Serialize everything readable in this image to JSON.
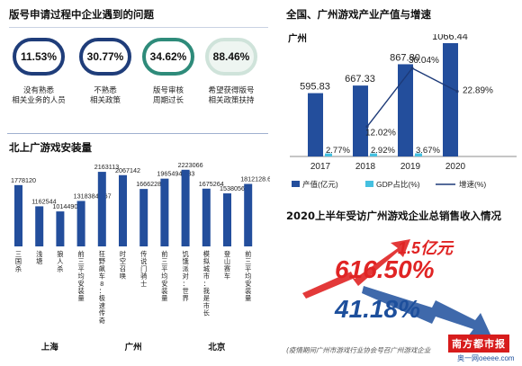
{
  "left_top": {
    "title": "版号申请过程中企业遇到的问题",
    "items": [
      {
        "value": "11.53%",
        "caption": "没有熟悉\n相关业务的人员",
        "color": "#1f3d7a"
      },
      {
        "value": "30.77%",
        "caption": "不熟悉\n相关政策",
        "color": "#1f3d7a"
      },
      {
        "value": "34.62%",
        "caption": "版号审核\n周期过长",
        "color": "#2e8b7a"
      },
      {
        "value": "88.46%",
        "caption": "希望获得版号\n相关政策扶持",
        "color": "#cfe3da"
      }
    ]
  },
  "chart_data": [
    {
      "type": "bar",
      "title": "北上广游戏安装量",
      "categories": [
        "三国杀",
        "浅塘",
        "狼人杀",
        "前三平均安装量",
        "狂野飙车8：极速传奇",
        "时空召唤",
        "传说门骑士",
        "前三平均安装量",
        "饥饿派对：世界",
        "模拟城市：我是市长",
        "登山赛车",
        "前三平均安装量"
      ],
      "values": [
        1778120,
        1162544,
        1014490,
        1318384.667,
        2163113,
        2067142,
        1666228,
        1965494.333,
        2223066,
        1675264,
        1538056,
        1812128.667
      ],
      "groups": [
        {
          "label": "上海",
          "count": 4
        },
        {
          "label": "广州",
          "count": 4
        },
        {
          "label": "北京",
          "count": 4
        }
      ],
      "bar_color": "#234e9c",
      "ylim": [
        0,
        2400000
      ]
    },
    {
      "type": "bar",
      "title": "全国、广州游戏产业产值与增速",
      "subtitle": "广州",
      "categories": [
        "2017",
        "2018",
        "2019",
        "2020"
      ],
      "series": [
        {
          "name": "产值(亿元)",
          "values": [
            595.83,
            667.33,
            867.8,
            1066.44
          ],
          "color": "#234e9c"
        },
        {
          "name": "GDP占比(%)",
          "values": [
            2.77,
            2.92,
            3.67,
            null
          ],
          "color": "#45c0e0"
        },
        {
          "name": "增速(%)",
          "values": [
            null,
            12.02,
            30.04,
            22.89
          ],
          "color": "#1d3a78"
        }
      ],
      "labels": {
        "output": [
          "595.83",
          "667.33",
          "867.80",
          "1066.44"
        ],
        "gdp": [
          "2.77%",
          "2.92%",
          "3.67%",
          ""
        ],
        "growth": [
          "",
          "12.02%",
          "30.04%",
          "22.89%"
        ]
      },
      "ylim": [
        0,
        1100
      ]
    }
  ],
  "right_bottom": {
    "title": "2020上半年受访广州游戏企业总销售收入情况",
    "amount": "1.5亿元",
    "pct_up": "616.50%",
    "pct_down": "41.18%",
    "up_color": "#e02424",
    "down_color": "#1d4f9c"
  },
  "source": "(疫情期间广州市游戏行业协会号召广州游戏企业",
  "watermark": {
    "brand": "南方都市报",
    "url": "奥一网oeeee.com"
  }
}
